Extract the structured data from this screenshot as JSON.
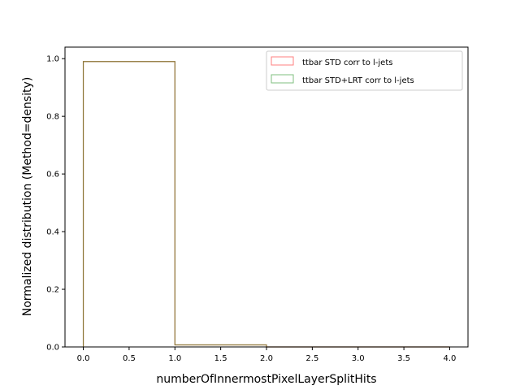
{
  "chart_data": {
    "type": "bar",
    "title": "",
    "xlabel": "numberOfInnermostPixelLayerSplitHits",
    "ylabel": "Normalized distribution (Method=density)",
    "xlim": [
      -0.2,
      4.2
    ],
    "ylim": [
      0,
      1.04
    ],
    "x_ticks": [
      "0.0",
      "0.5",
      "1.0",
      "1.5",
      "2.0",
      "2.5",
      "3.0",
      "3.5",
      "4.0"
    ],
    "y_ticks": [
      "0.0",
      "0.2",
      "0.4",
      "0.6",
      "0.8",
      "1.0"
    ],
    "bin_edges": [
      0,
      1,
      2,
      3,
      4
    ],
    "histtype": "step",
    "grid": false,
    "legend_position": "top-right",
    "series": [
      {
        "name": "ttbar STD corr to l-jets",
        "color": "#ff7f7f",
        "values": [
          0.99,
          0.007,
          0,
          0
        ]
      },
      {
        "name": "ttbar STD+LRT corr to l-jets",
        "color": "#7fbf7f",
        "values": [
          0.99,
          0.007,
          0,
          0
        ]
      }
    ],
    "overlap_color": "#8c7a3a"
  }
}
